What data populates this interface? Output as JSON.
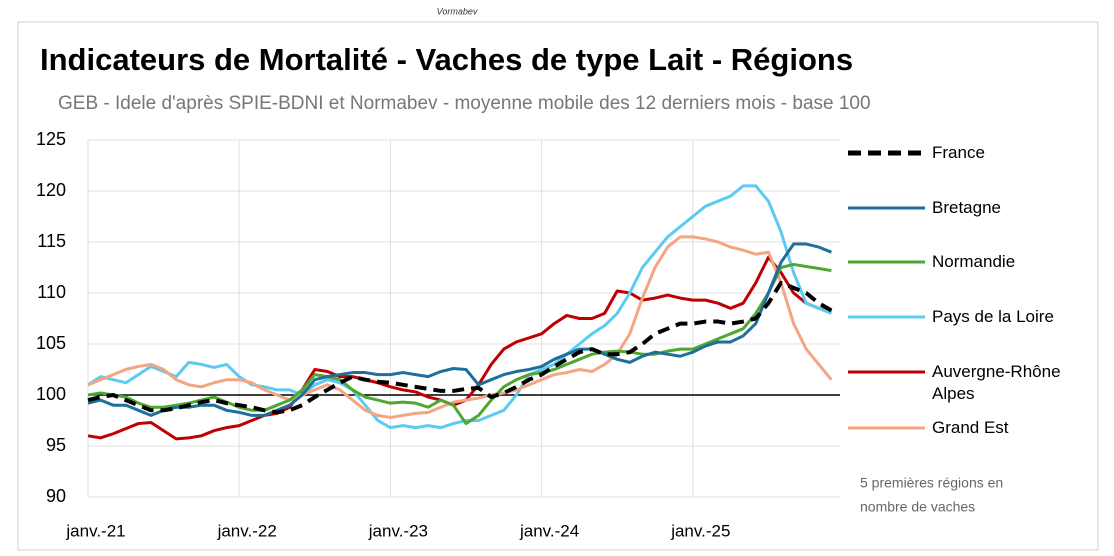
{
  "chart_data": {
    "type": "line",
    "watermark": "Vormabev",
    "title": "Indicateurs de Mortalité - Vaches de type Lait - Régions",
    "subtitle": "GEB - Idele d'après SPIE-BDNI  et Normabev - moyenne mobile des 12 derniers mois - base 100",
    "annotation": [
      "5 premières régions en",
      "nombre de vaches"
    ],
    "categories": [
      "janv.-21",
      null,
      null,
      null,
      null,
      null,
      null,
      null,
      null,
      null,
      null,
      null,
      "janv.-22",
      null,
      null,
      null,
      null,
      null,
      null,
      null,
      null,
      null,
      null,
      null,
      "janv.-23",
      null,
      null,
      null,
      null,
      null,
      null,
      null,
      null,
      null,
      null,
      null,
      "janv.-24",
      null,
      null,
      null,
      null,
      null,
      null,
      null,
      null,
      null,
      null,
      null,
      "janv.-25",
      null,
      null,
      null,
      null,
      null,
      null,
      null,
      null,
      null,
      null,
      null
    ],
    "ylim": [
      90,
      125
    ],
    "yticks": [
      90,
      95,
      100,
      105,
      110,
      115,
      120,
      125
    ],
    "grid": true,
    "reference_line": 100,
    "series": [
      {
        "name": "France",
        "color": "#000000",
        "dashed": true,
        "values": [
          99.5,
          99.8,
          100,
          99.5,
          99,
          98.5,
          98.5,
          98.7,
          99,
          99.3,
          99.5,
          99.2,
          99,
          98.8,
          98.5,
          98.3,
          98.5,
          99,
          99.8,
          100.5,
          101.2,
          101.8,
          101.5,
          101.3,
          101.2,
          101,
          100.8,
          100.6,
          100.4,
          100.4,
          100.6,
          100.7,
          99.8,
          100.2,
          100.8,
          101.5,
          102,
          102.8,
          103.5,
          104.2,
          104.5,
          104,
          104,
          104.2,
          105,
          106,
          106.5,
          107,
          107,
          107.2,
          107.2,
          107,
          107.2,
          107.5,
          109,
          111,
          110.5,
          110,
          109,
          108.3
        ]
      },
      {
        "name": "Bretagne",
        "color": "#1f6e9c",
        "values": [
          99.2,
          99.5,
          99,
          99,
          98.5,
          98,
          98.5,
          98.8,
          98.8,
          99,
          99,
          98.5,
          98.3,
          98,
          98,
          98.5,
          99,
          100,
          101.5,
          101.8,
          102,
          102.2,
          102.2,
          102,
          102,
          102.2,
          102,
          101.8,
          102.3,
          102.6,
          102.5,
          101,
          101.5,
          102,
          102.3,
          102.5,
          102.8,
          103.5,
          104,
          104.5,
          104.5,
          104,
          103.5,
          103.2,
          103.8,
          104.2,
          104,
          103.8,
          104.2,
          104.8,
          105.2,
          105.2,
          105.8,
          107,
          110,
          113,
          114.8,
          114.8,
          114.5,
          114
        ]
      },
      {
        "name": "Normandie",
        "color": "#4ea72e",
        "values": [
          100,
          100.2,
          100,
          99.8,
          99.2,
          98.8,
          98.8,
          99,
          99.2,
          99.5,
          99.8,
          99.3,
          98.8,
          98.5,
          98.5,
          99,
          99.5,
          100.5,
          102,
          101.8,
          101.5,
          100.5,
          99.8,
          99.5,
          99.2,
          99.3,
          99.2,
          98.8,
          99.5,
          99,
          97.2,
          98,
          99.5,
          100.8,
          101.5,
          102,
          102.2,
          102.5,
          103,
          103.5,
          104,
          104.2,
          104.3,
          104.2,
          104,
          104,
          104.3,
          104.5,
          104.5,
          105,
          105.5,
          106,
          106.5,
          108,
          110,
          112.5,
          112.8,
          112.6,
          112.4,
          112.2
        ]
      },
      {
        "name": "Pays de la Loire",
        "color": "#5ccbf2",
        "values": [
          101,
          101.8,
          101.5,
          101.2,
          102,
          102.8,
          102.3,
          101.8,
          103.2,
          103,
          102.7,
          103,
          101.8,
          101,
          100.8,
          100.5,
          100.5,
          100,
          101,
          101.5,
          101.2,
          100.5,
          99,
          97.5,
          96.8,
          97,
          96.8,
          97,
          96.8,
          97.2,
          97.5,
          97.5,
          98,
          98.5,
          100,
          102,
          102.5,
          103,
          104,
          105,
          106,
          106.8,
          108,
          110,
          112.5,
          114,
          115.5,
          116.5,
          117.5,
          118.5,
          119,
          119.5,
          120.5,
          120.5,
          119,
          116,
          112,
          109,
          108.5,
          108
        ]
      },
      {
        "name": "Auvergne-Rhône Alpes",
        "color": "#c00000",
        "values": [
          96,
          95.8,
          96.2,
          96.7,
          97.2,
          97.3,
          96.5,
          95.7,
          95.8,
          96,
          96.5,
          96.8,
          97,
          97.5,
          98,
          98.2,
          98.8,
          100.5,
          102.5,
          102.3,
          101.8,
          101.8,
          101.5,
          101.2,
          100.8,
          100.5,
          100.3,
          99.8,
          99.5,
          99,
          99.5,
          101,
          103,
          104.5,
          105.2,
          105.6,
          106,
          107,
          107.8,
          107.5,
          107.5,
          108,
          110.2,
          110,
          109.3,
          109.5,
          109.8,
          109.5,
          109.3,
          109.3,
          109,
          108.5,
          109,
          111,
          113.5,
          112,
          110,
          109,
          108.5,
          108.2
        ]
      },
      {
        "name": "Grand Est",
        "color": "#f4a582",
        "values": [
          101,
          101.5,
          102,
          102.5,
          102.8,
          103,
          102.5,
          101.5,
          101,
          100.8,
          101.2,
          101.5,
          101.5,
          101.2,
          100.5,
          100,
          99.5,
          100,
          100.5,
          101,
          100.5,
          99.5,
          98.5,
          98,
          97.8,
          98,
          98.2,
          98.3,
          98.8,
          99.3,
          99.5,
          99.7,
          100,
          100.2,
          100.5,
          101,
          101.5,
          102,
          102.2,
          102.5,
          102.3,
          103,
          104,
          106,
          109.5,
          112.5,
          114.5,
          115.5,
          115.5,
          115.3,
          115,
          114.5,
          114.2,
          113.8,
          114,
          111,
          107,
          104.5,
          103,
          101.5
        ]
      }
    ]
  }
}
